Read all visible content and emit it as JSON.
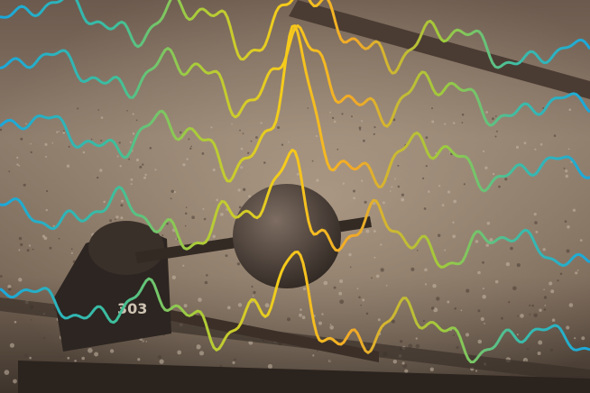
{
  "image": {
    "marking": "303"
  }
}
